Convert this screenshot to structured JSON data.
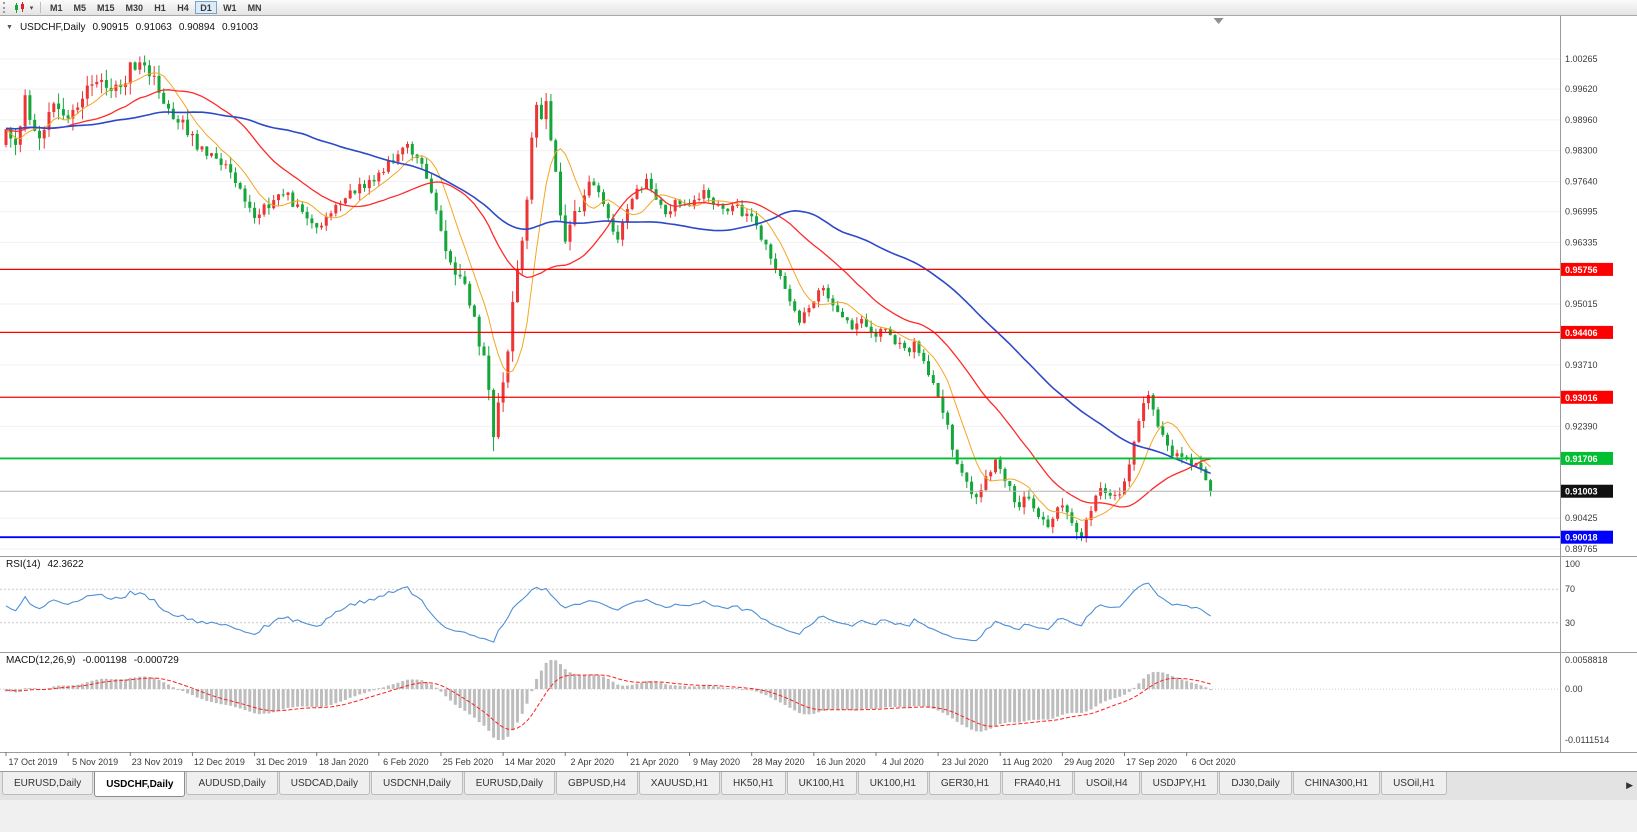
{
  "toolbar": {
    "timeframes": [
      "M1",
      "M5",
      "M15",
      "M30",
      "H1",
      "H4",
      "D1",
      "W1",
      "MN"
    ],
    "active_timeframe": "D1"
  },
  "chart": {
    "title": "USDCHF,Daily",
    "ohlc": {
      "open": "0.90915",
      "high": "0.91063",
      "low": "0.90894",
      "close": "0.91003"
    },
    "price_axis_labels": [
      "1.00265",
      "0.99620",
      "0.98960",
      "0.98300",
      "0.97640",
      "0.96995",
      "0.96335",
      "0.95015",
      "0.93710",
      "0.92390",
      "0.90425",
      "0.89765"
    ],
    "hlines": [
      {
        "price": 0.95756,
        "label": "0.95756",
        "color": "#ff0000",
        "width": 1.2
      },
      {
        "price": 0.94406,
        "label": "0.94406",
        "color": "#ff0000",
        "width": 1.2
      },
      {
        "price": 0.93016,
        "label": "0.93016",
        "color": "#ff0000",
        "width": 1.2
      },
      {
        "price": 0.91706,
        "label": "0.91706",
        "color": "#00bf30",
        "width": 1.8
      },
      {
        "price": 0.90018,
        "label": "0.90018",
        "color": "#0000ff",
        "width": 1.8
      }
    ],
    "current_price": {
      "price": 0.91003,
      "label": "0.91003",
      "line_color": "#b4b4b4",
      "tag_color": "#111111"
    },
    "date_labels": [
      "17 Oct 2019",
      "5 Nov 2019",
      "23 Nov 2019",
      "12 Dec 2019",
      "31 Dec 2019",
      "18 Jan 2020",
      "6 Feb 2020",
      "25 Feb 2020",
      "14 Mar 2020",
      "2 Apr 2020",
      "21 Apr 2020",
      "9 May 2020",
      "28 May 2020",
      "16 Jun 2020",
      "4 Jul 2020",
      "23 Jul 2020",
      "11 Aug 2020",
      "29 Aug 2020",
      "17 Sep 2020",
      "6 Oct 2020"
    ]
  },
  "indicators": {
    "rsi": {
      "name": "RSI(14)",
      "value_text": "42.3622",
      "value": 42.3622,
      "levels": [
        100,
        70,
        30
      ],
      "level_labels": [
        "100",
        "70",
        "30"
      ],
      "line_color": "#4f8fd6"
    },
    "macd": {
      "name": "MACD(12,26,9)",
      "value_text": "-0.001198",
      "signal_text": "-0.000729",
      "axis_labels": [
        "0.0058818",
        "0.00",
        "-0.0111514"
      ],
      "bar_color": "#bdbdbd",
      "signal_color": "#ff2020"
    }
  },
  "tab_bar": {
    "tabs": [
      {
        "label": "EURUSD,Daily",
        "active": false
      },
      {
        "label": "USDCHF,Daily",
        "active": true
      },
      {
        "label": "AUDUSD,Daily",
        "active": false
      },
      {
        "label": "USDCAD,Daily",
        "active": false
      },
      {
        "label": "USDCNH,Daily",
        "active": false
      },
      {
        "label": "EURUSD,Daily",
        "active": false
      },
      {
        "label": "GBPUSD,H4",
        "active": false
      },
      {
        "label": "XAUUSD,H1",
        "active": false
      },
      {
        "label": "HK50,H1",
        "active": false
      },
      {
        "label": "UK100,H1",
        "active": false
      },
      {
        "label": "UK100,H1",
        "active": false
      },
      {
        "label": "GER30,H1",
        "active": false
      },
      {
        "label": "FRA40,H1",
        "active": false
      },
      {
        "label": "USOil,H4",
        "active": false
      },
      {
        "label": "USDJPY,H1",
        "active": false
      },
      {
        "label": "DJ30,Daily",
        "active": false
      },
      {
        "label": "CHINA300,H1",
        "active": false
      },
      {
        "label": "USOil,H1",
        "active": false
      }
    ]
  },
  "chart_data": {
    "type": "candlestick",
    "symbol": "USDCHF",
    "period": "Daily",
    "x_range": [
      "17 Oct 2019",
      "14 Oct 2020"
    ],
    "y_range": [
      0.89615,
      1.01186
    ],
    "up_color": "#ec3535",
    "down_color": "#14a63a",
    "candles": 253,
    "ma_lines": [
      {
        "period": 8,
        "color": "#f5a623",
        "width": 1
      },
      {
        "period": 25,
        "color": "#ff2a2a",
        "width": 1.3
      },
      {
        "period": 60,
        "color": "#2d49c8",
        "width": 1.6
      }
    ],
    "waypoints": [
      [
        0,
        0.988
      ],
      [
        2,
        0.9845
      ],
      [
        4,
        0.9935
      ],
      [
        7,
        0.9865
      ],
      [
        10,
        0.9915
      ],
      [
        13,
        0.9905
      ],
      [
        16,
        0.9955
      ],
      [
        19,
        0.9985
      ],
      [
        22,
        0.9945
      ],
      [
        26,
        1.0005
      ],
      [
        29,
        1.0018
      ],
      [
        32,
        0.996
      ],
      [
        35,
        0.9908
      ],
      [
        39,
        0.9856
      ],
      [
        43,
        0.983
      ],
      [
        46,
        0.9795
      ],
      [
        49,
        0.9748
      ],
      [
        52,
        0.9692
      ],
      [
        55,
        0.9716
      ],
      [
        58,
        0.9744
      ],
      [
        62,
        0.9694
      ],
      [
        65,
        0.9668
      ],
      [
        68,
        0.97
      ],
      [
        71,
        0.9726
      ],
      [
        74,
        0.9754
      ],
      [
        78,
        0.9776
      ],
      [
        81,
        0.9812
      ],
      [
        84,
        0.9844
      ],
      [
        87,
        0.9792
      ],
      [
        90,
        0.9706
      ],
      [
        91,
        0.9655
      ],
      [
        93,
        0.9592
      ],
      [
        95,
        0.9556
      ],
      [
        97,
        0.9502
      ],
      [
        99,
        0.9425
      ],
      [
        101,
        0.933
      ],
      [
        102,
        0.9215
      ],
      [
        103,
        0.9292
      ],
      [
        104,
        0.9325
      ],
      [
        105,
        0.9408
      ],
      [
        106,
        0.9518
      ],
      [
        107,
        0.956
      ],
      [
        108,
        0.9648
      ],
      [
        109,
        0.973
      ],
      [
        110,
        0.9848
      ],
      [
        111,
        0.9918
      ],
      [
        112,
        0.9892
      ],
      [
        113,
        0.9928
      ],
      [
        114,
        0.9862
      ],
      [
        115,
        0.98
      ],
      [
        116,
        0.9702
      ],
      [
        117,
        0.9622
      ],
      [
        118,
        0.966
      ],
      [
        120,
        0.9712
      ],
      [
        122,
        0.9758
      ],
      [
        124,
        0.9732
      ],
      [
        126,
        0.9682
      ],
      [
        128,
        0.964
      ],
      [
        130,
        0.97
      ],
      [
        132,
        0.9738
      ],
      [
        134,
        0.976
      ],
      [
        136,
        0.9728
      ],
      [
        138,
        0.97
      ],
      [
        140,
        0.9722
      ],
      [
        143,
        0.9714
      ],
      [
        146,
        0.974
      ],
      [
        148,
        0.9718
      ],
      [
        150,
        0.97
      ],
      [
        152,
        0.9716
      ],
      [
        154,
        0.9698
      ],
      [
        156,
        0.969
      ],
      [
        158,
        0.9642
      ],
      [
        160,
        0.96
      ],
      [
        162,
        0.9558
      ],
      [
        164,
        0.95
      ],
      [
        166,
        0.9462
      ],
      [
        168,
        0.949
      ],
      [
        169,
        0.9512
      ],
      [
        171,
        0.954
      ],
      [
        173,
        0.9502
      ],
      [
        175,
        0.947
      ],
      [
        177,
        0.9452
      ],
      [
        179,
        0.9462
      ],
      [
        182,
        0.9432
      ],
      [
        184,
        0.9452
      ],
      [
        186,
        0.9424
      ],
      [
        188,
        0.94
      ],
      [
        190,
        0.9412
      ],
      [
        192,
        0.938
      ],
      [
        194,
        0.9332
      ],
      [
        195,
        0.93
      ],
      [
        197,
        0.9232
      ],
      [
        199,
        0.916
      ],
      [
        201,
        0.9112
      ],
      [
        203,
        0.9082
      ],
      [
        205,
        0.913
      ],
      [
        207,
        0.9158
      ],
      [
        208,
        0.915
      ],
      [
        210,
        0.9102
      ],
      [
        212,
        0.9072
      ],
      [
        214,
        0.9092
      ],
      [
        216,
        0.9052
      ],
      [
        218,
        0.903
      ],
      [
        220,
        0.9062
      ],
      [
        221,
        0.908
      ],
      [
        223,
        0.9032
      ],
      [
        225,
        0.9002
      ],
      [
        227,
        0.9062
      ],
      [
        229,
        0.9108
      ],
      [
        231,
        0.9082
      ],
      [
        233,
        0.91
      ],
      [
        234,
        0.9122
      ],
      [
        236,
        0.92
      ],
      [
        238,
        0.9282
      ],
      [
        239,
        0.9298
      ],
      [
        241,
        0.9242
      ],
      [
        243,
        0.9192
      ],
      [
        245,
        0.9172
      ],
      [
        247,
        0.9176
      ],
      [
        249,
        0.915
      ],
      [
        251,
        0.9128
      ],
      [
        252,
        0.91003
      ]
    ],
    "spikes": [
      {
        "i": 29,
        "high": 1.0034
      },
      {
        "i": 102,
        "low": 0.9186
      },
      {
        "i": 113,
        "high": 0.9942
      },
      {
        "i": 225,
        "low": 0.8999
      },
      {
        "i": 239,
        "high": 0.9314
      }
    ]
  }
}
